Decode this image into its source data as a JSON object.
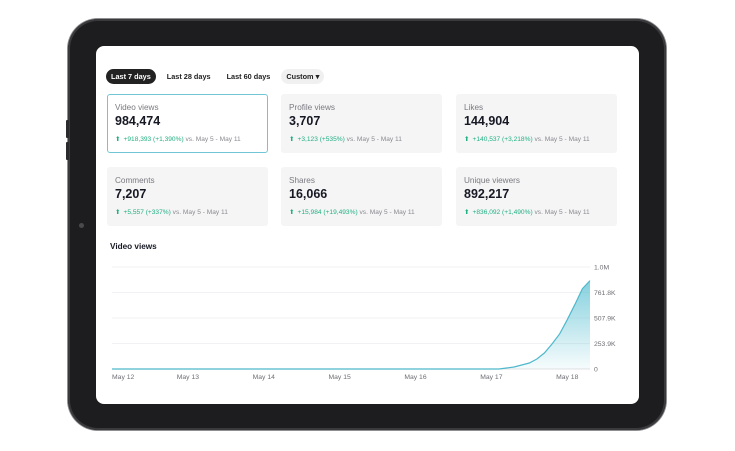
{
  "tabs": [
    {
      "label": "Last 7 days",
      "active": true
    },
    {
      "label": "Last 28 days",
      "active": false
    },
    {
      "label": "Last 60 days",
      "active": false
    },
    {
      "label": "Custom ▾",
      "active": false
    }
  ],
  "cards": [
    {
      "label": "Video views",
      "value": "984,474",
      "change": "+918,393 (+1,390%)",
      "compare": "vs.  May 5 - May 11",
      "selected": true
    },
    {
      "label": "Profile views",
      "value": "3,707",
      "change": "+3,123 (+535%)",
      "compare": "vs.  May 5 - May 11",
      "selected": false
    },
    {
      "label": "Likes",
      "value": "144,904",
      "change": "+140,537 (+3,218%)",
      "compare": "vs.  May 5 - May 11",
      "selected": false
    },
    {
      "label": "Comments",
      "value": "7,207",
      "change": "+5,557 (+337%)",
      "compare": "vs.  May 5 - May 11",
      "selected": false
    },
    {
      "label": "Shares",
      "value": "16,066",
      "change": "+15,984 (+19,493%)",
      "compare": "vs.  May 5 - May 11",
      "selected": false
    },
    {
      "label": "Unique viewers",
      "value": "892,217",
      "change": "+836,092 (+1,490%)",
      "compare": "vs.  May 5 - May 11",
      "selected": false
    }
  ],
  "chart_title": "Video views",
  "colors": {
    "accent": "#5cc1d3",
    "positive": "#20b081",
    "selected_border": "#71c6d6"
  },
  "chart_data": {
    "type": "area",
    "x": [
      "May 12",
      "May 13",
      "May 14",
      "May 15",
      "May 16",
      "May 17",
      "May 18"
    ],
    "points": [
      [
        0,
        0
      ],
      [
        1,
        0
      ],
      [
        2,
        0
      ],
      [
        3,
        0
      ],
      [
        4,
        0
      ],
      [
        5,
        0
      ],
      [
        5.1,
        0
      ],
      [
        5.2,
        0.01
      ],
      [
        5.3,
        0.02
      ],
      [
        5.4,
        0.04
      ],
      [
        5.5,
        0.06
      ],
      [
        5.6,
        0.1
      ],
      [
        5.7,
        0.16
      ],
      [
        5.8,
        0.25
      ],
      [
        5.9,
        0.35
      ],
      [
        6,
        0.49
      ],
      [
        6.1,
        0.64
      ],
      [
        6.2,
        0.8
      ],
      [
        6.3,
        0.88
      ]
    ],
    "y_tick_labels": [
      "0",
      "253.9K",
      "507.9K",
      "761.8K",
      "1.0M"
    ],
    "ylim": [
      0,
      1.0156
    ],
    "y_unit_note": "values in millions of views",
    "grid": true
  }
}
